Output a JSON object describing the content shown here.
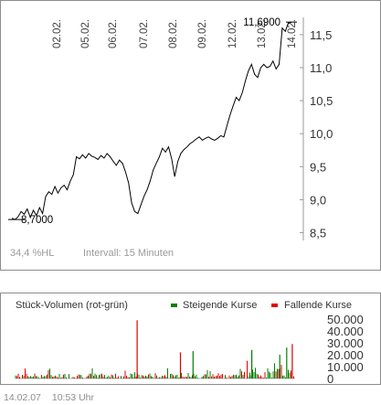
{
  "chart_data": [
    {
      "type": "line",
      "title": "",
      "xlabel": "",
      "ylabel": "",
      "ylim": [
        8.3,
        11.9
      ],
      "y_ticks": [
        "11,5",
        "11,0",
        "10,5",
        "10,0",
        "9,5",
        "9,0",
        "8,5"
      ],
      "y_tick_values": [
        11.5,
        11.0,
        10.5,
        10.0,
        9.5,
        9.0,
        8.5
      ],
      "x_ticks": [
        "02.02.",
        "05.02.",
        "06.02.",
        "07.02.",
        "08.02.",
        "09.02.",
        "12.02.",
        "13.02.",
        "14.02."
      ],
      "grid": false,
      "series": [
        {
          "values": [
            8.72,
            8.7,
            8.74,
            8.82,
            8.78,
            8.86,
            8.73,
            8.84,
            8.76,
            8.88,
            8.79,
            9.05,
            9.12,
            9.08,
            9.2,
            9.1,
            9.18,
            9.22,
            9.15,
            9.28,
            9.38,
            9.65,
            9.62,
            9.68,
            9.63,
            9.7,
            9.66,
            9.64,
            9.61,
            9.67,
            9.63,
            9.7,
            9.65,
            9.58,
            9.52,
            9.6,
            9.55,
            9.42,
            9.25,
            8.95,
            8.82,
            8.79,
            8.92,
            9.05,
            9.15,
            9.28,
            9.45,
            9.55,
            9.65,
            9.78,
            9.72,
            9.8,
            9.62,
            9.35,
            9.58,
            9.7,
            9.76,
            9.8,
            9.85,
            9.88,
            9.92,
            9.95,
            9.9,
            9.93,
            9.95,
            9.92,
            9.9,
            9.93,
            9.97,
            9.95,
            10.12,
            10.28,
            10.42,
            10.55,
            10.5,
            10.62,
            10.8,
            10.95,
            11.05,
            10.9,
            10.85,
            11.0,
            11.05,
            11.0,
            11.02,
            11.1,
            10.98,
            11.05,
            11.6,
            11.55,
            11.68,
            11.69
          ]
        }
      ],
      "annotations": {
        "high_label": "11,6900",
        "low_label": "8,7000",
        "range_text": "34,4 %HL",
        "interval_text": "Intervall: 15 Minuten"
      }
    },
    {
      "type": "bar",
      "title": "Stück-Volumen (rot-grün)",
      "ylim": [
        0,
        50000
      ],
      "y_ticks": [
        "50.000",
        "40.000",
        "30.000",
        "20.000",
        "10.000",
        "0"
      ],
      "y_tick_values": [
        50000,
        40000,
        30000,
        20000,
        10000,
        0
      ],
      "series": [
        {
          "name": "Steigende Kurse",
          "color": "#008000"
        },
        {
          "name": "Fallende Kurse",
          "color": "#e00000"
        }
      ],
      "legend_position": "top-right",
      "spikes": [
        {
          "series": "Fallende Kurse",
          "x_fraction": 0.435,
          "value": 49000
        },
        {
          "series": "Fallende Kurse",
          "x_fraction": 0.59,
          "value": 22000
        },
        {
          "series": "Fallende Kurse",
          "x_fraction": 0.99,
          "value": 29000
        },
        {
          "series": "Steigende Kurse",
          "x_fraction": 0.635,
          "value": 23000
        },
        {
          "series": "Steigende Kurse",
          "x_fraction": 0.845,
          "value": 24000
        },
        {
          "series": "Steigende Kurse",
          "x_fraction": 0.945,
          "value": 20000
        },
        {
          "series": "Steigende Kurse",
          "x_fraction": 0.97,
          "value": 26000
        }
      ]
    }
  ],
  "footer": {
    "date": "14.02.07",
    "time": "10:53 Uhr"
  }
}
